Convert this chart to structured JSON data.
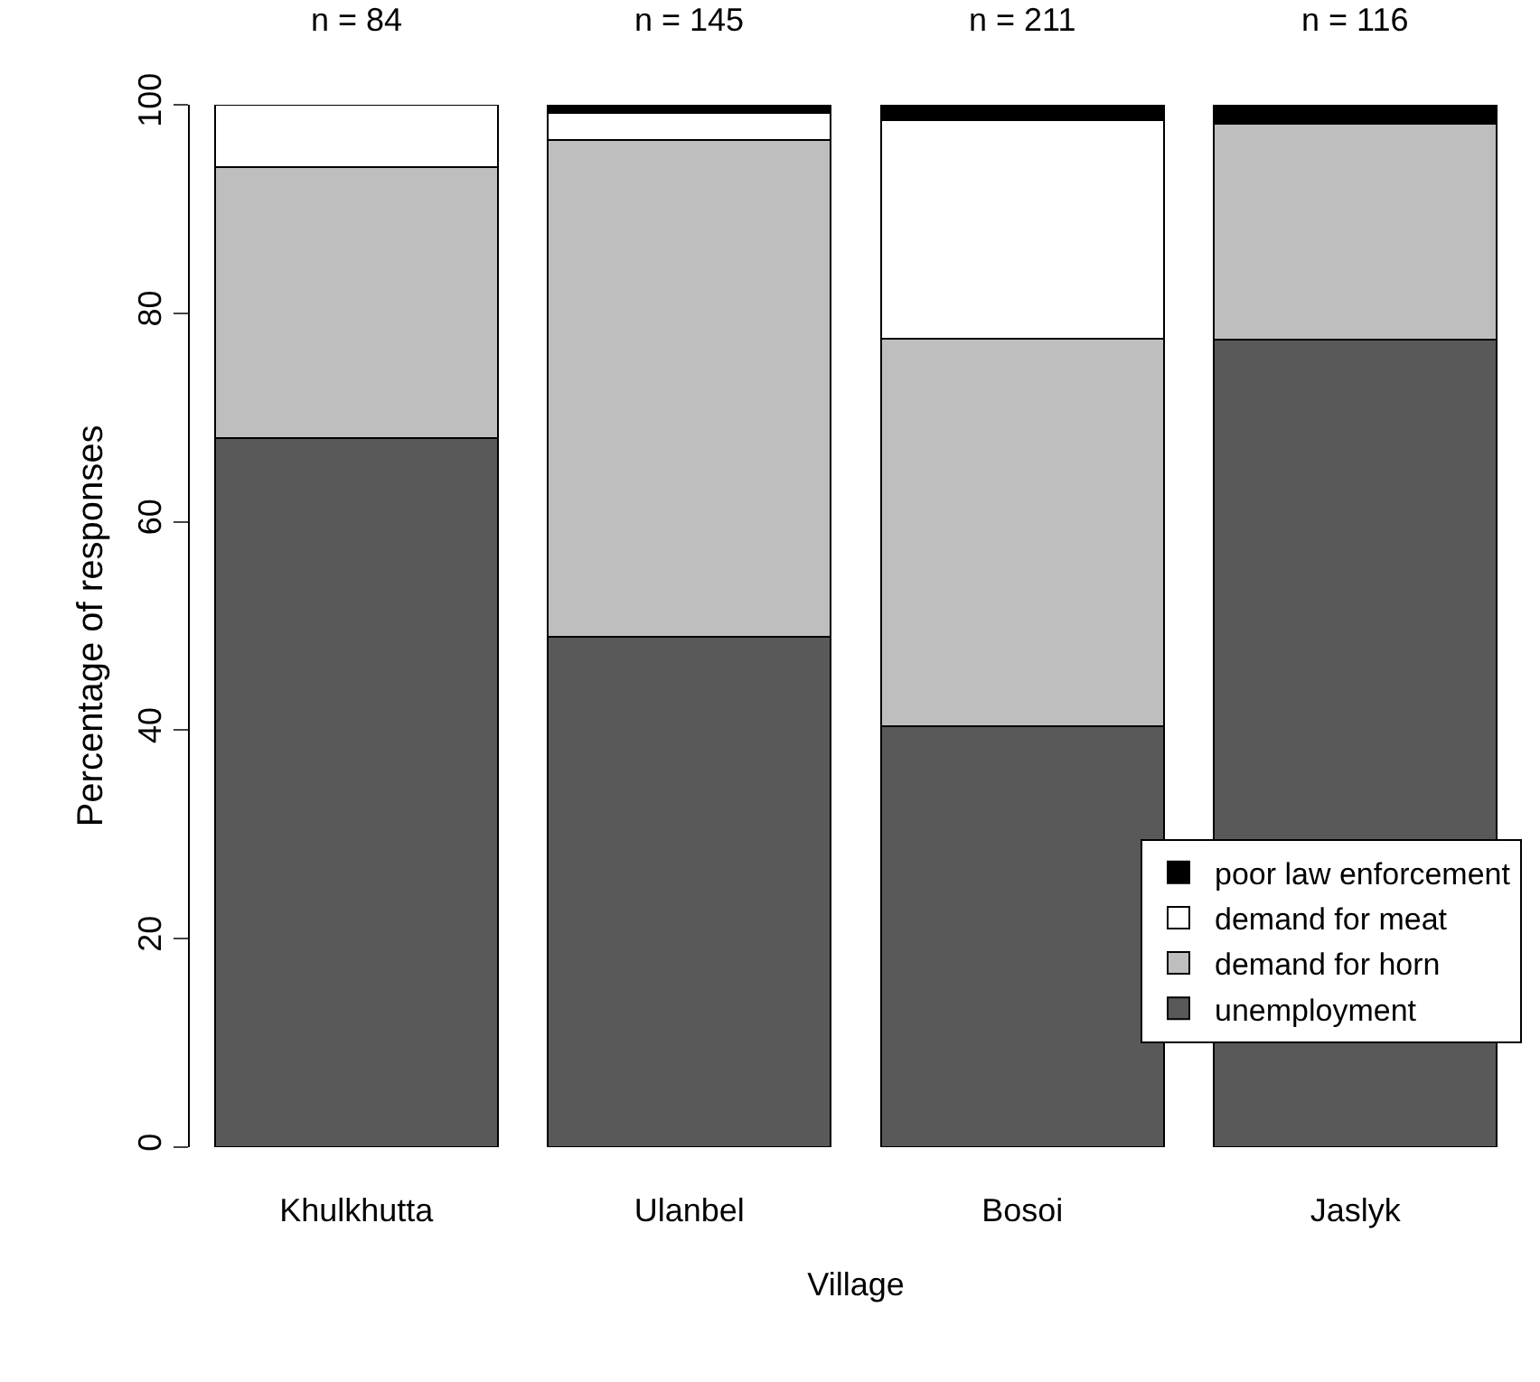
{
  "chart_data": {
    "type": "bar",
    "stacked": true,
    "xlabel": "Village",
    "ylabel": "Percentage of responses",
    "categories": [
      "Khulkhutta",
      "Ulanbel",
      "Bosoi",
      "Jaslyk"
    ],
    "series": [
      {
        "name": "unemployment",
        "color": "#595959",
        "values": [
          68,
          49,
          40.4,
          77.5
        ]
      },
      {
        "name": "demand for horn",
        "color": "#bebebe",
        "values": [
          26,
          47.6,
          37.2,
          20.7
        ]
      },
      {
        "name": "demand for meat",
        "color": "#ffffff",
        "values": [
          6,
          2.6,
          20.9,
          0
        ]
      },
      {
        "name": "poor law enforcement",
        "color": "#000000",
        "values": [
          0,
          0.8,
          1.5,
          1.8
        ]
      }
    ],
    "annotations": [
      "n = 84",
      "n = 145",
      "n = 211",
      "n = 116"
    ],
    "ylim": [
      0,
      100
    ],
    "yticks": [
      0,
      20,
      40,
      60,
      80,
      100
    ],
    "grid": false,
    "legend": "bottom right"
  }
}
